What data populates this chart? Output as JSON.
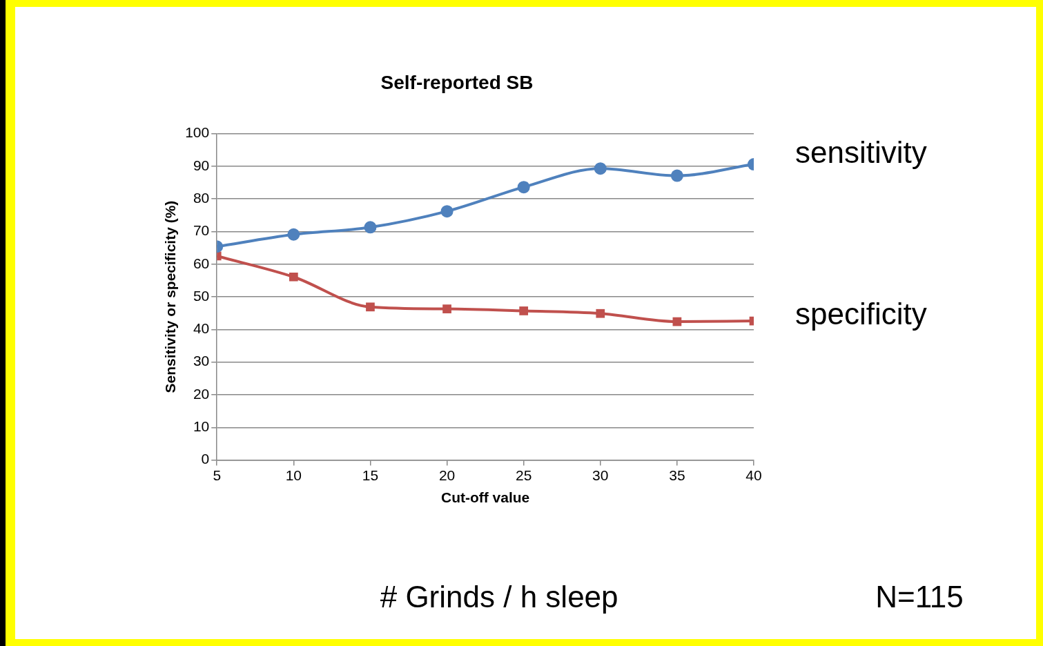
{
  "chart_data": {
    "type": "line",
    "title": "Self-reported SB",
    "xlabel": "Cut-off value",
    "ylabel": "Sensitivity or specificity (%)",
    "x": [
      5,
      10,
      15,
      20,
      25,
      30,
      35,
      40
    ],
    "series": [
      {
        "name": "sensitivity",
        "color": "#4f81bd",
        "marker": "circle",
        "values": [
          65.4,
          69.1,
          71.3,
          76.2,
          83.6,
          89.3,
          87.1,
          90.6
        ]
      },
      {
        "name": "specificity",
        "color": "#c0504d",
        "marker": "square",
        "values": [
          62.5,
          56.1,
          46.9,
          46.3,
          45.7,
          44.9,
          42.4,
          42.6
        ]
      }
    ],
    "xlim": [
      5,
      40
    ],
    "xticks": [
      5,
      10,
      15,
      20,
      25,
      30,
      35,
      40
    ],
    "ylim": [
      0,
      100
    ],
    "yticks": [
      0,
      10,
      20,
      30,
      40,
      50,
      60,
      70,
      80,
      90,
      100
    ],
    "grid": "y",
    "legend": false,
    "annotations": [
      "# Grinds / h sleep",
      "N=115"
    ]
  }
}
